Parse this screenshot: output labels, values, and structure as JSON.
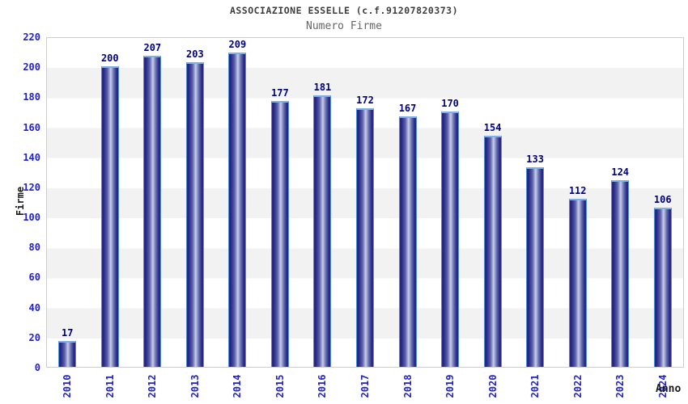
{
  "chart_data": {
    "type": "bar",
    "title": "ASSOCIAZIONE ESSELLE (c.f.91207820373)",
    "subtitle": "Numero Firme",
    "xlabel": "Anno",
    "ylabel": "Firme",
    "categories": [
      "2010",
      "2011",
      "2012",
      "2013",
      "2014",
      "2015",
      "2016",
      "2017",
      "2018",
      "2019",
      "2020",
      "2021",
      "2022",
      "2023",
      "2024"
    ],
    "values": [
      17,
      200,
      207,
      203,
      209,
      177,
      181,
      172,
      167,
      170,
      154,
      133,
      112,
      124,
      106
    ],
    "ylim": [
      0,
      220
    ],
    "ytick_step": 20,
    "grid": "alternating-horizontal-bands",
    "legend": "none",
    "colors": {
      "bar_dark": "#23237e",
      "bar_light": "#c9cee9",
      "bar_border": "#4f8fe0",
      "bar_top_cap": "#7db0e8",
      "tick_label": "#2222cc",
      "value_label": "#000080",
      "band_gray": "#f2f2f2",
      "band_white": "#ffffff",
      "plot_border": "#cccccc",
      "title_color": "#3d3d3d",
      "subtitle_color": "#666666",
      "axis_title_color": "#1a1a1a"
    }
  }
}
